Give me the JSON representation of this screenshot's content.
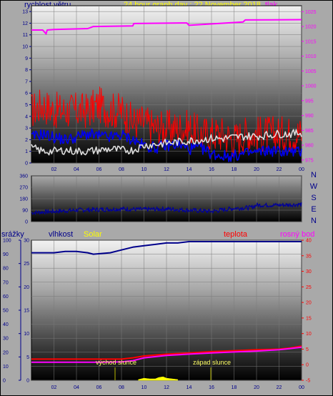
{
  "header": {
    "wind_label": "rychlost větru",
    "title": "24 hour graph day : 22 November 2018",
    "pressure_label": "tlak"
  },
  "direction_labels": [
    "N",
    "W",
    "S",
    "E",
    "N"
  ],
  "lower_header": {
    "rain_label": "srážky",
    "humidity_label": "vlhkost",
    "solar_label": "Solar",
    "temp_label": "teplota",
    "dew_label": "rosný bod"
  },
  "annotations": {
    "sunrise": "východ slunce",
    "sunset": "západ slunce"
  },
  "colors": {
    "wind_gust": "#ff0000",
    "wind_avg": "#0000ee",
    "pressure": "#ff00ff",
    "wind_dir": "#00009a",
    "humidity": "#00008b",
    "temperature": "#ff0000",
    "dew_point": "#ff00ff",
    "solar": "#ffff00",
    "white_series": "#dddddd",
    "left_axis_text": "#00008b",
    "title_text": "#ffff00"
  },
  "chart_data": [
    {
      "type": "line",
      "name": "wind-speed-pressure",
      "x_ticks": [
        "02",
        "04",
        "06",
        "08",
        "10",
        "12",
        "14",
        "16",
        "18",
        "20",
        "22",
        "00"
      ],
      "y_left_ticks": [
        "0",
        "1",
        "2",
        "3",
        "4",
        "5",
        "6",
        "7",
        "8",
        "9",
        "10",
        "11",
        "12",
        "13"
      ],
      "y_left_range": [
        0,
        13.5
      ],
      "y_right_ticks": [
        "975",
        "980",
        "985",
        "990",
        "995",
        "1000",
        "1005",
        "1010",
        "1015",
        "1020",
        "1025"
      ],
      "y_right_range": [
        974,
        1027
      ],
      "x_range": [
        0,
        24
      ],
      "series": [
        {
          "key": "gust",
          "x": [
            0,
            1,
            2,
            3,
            4,
            5,
            6,
            7,
            8,
            9,
            10,
            11,
            12,
            13,
            14,
            15,
            16,
            17,
            18,
            19,
            20,
            21,
            22,
            23,
            24
          ],
          "values": [
            4.5,
            5,
            4.5,
            4.5,
            4.5,
            4.5,
            5,
            4.5,
            4.5,
            3.5,
            3.5,
            3,
            3,
            3,
            3,
            2.5,
            2.5,
            2.5,
            2,
            2.5,
            2.5,
            2.5,
            2.5,
            2.5,
            2.5
          ]
        },
        {
          "key": "average",
          "x": [
            0,
            1,
            2,
            3,
            4,
            5,
            6,
            7,
            8,
            9,
            10,
            11,
            12,
            13,
            14,
            15,
            16,
            17,
            18,
            19,
            20,
            21,
            22,
            23,
            24
          ],
          "values": [
            2.2,
            2.5,
            2.2,
            2,
            2.2,
            2.5,
            2.3,
            2.2,
            2.4,
            2,
            1.5,
            1.3,
            1.5,
            1.6,
            1.2,
            1.3,
            0.8,
            0.6,
            0.6,
            0.8,
            0.9,
            1.1,
            1,
            1,
            0.9
          ]
        },
        {
          "key": "white",
          "x": [
            0,
            1,
            2,
            3,
            4,
            5,
            6,
            7,
            8,
            9,
            10,
            11,
            12,
            13,
            14,
            15,
            16,
            17,
            18,
            19,
            20,
            21,
            22,
            23,
            24
          ],
          "values": [
            1.3,
            1,
            1,
            1.1,
            1,
            1,
            1.1,
            1.2,
            1.1,
            1.1,
            1.5,
            1.6,
            1.7,
            1.8,
            1.9,
            2,
            2.1,
            2.1,
            2.2,
            2.3,
            2.3,
            2.4,
            2.5,
            2.5,
            2.6
          ]
        },
        {
          "key": "pressure",
          "axis": "right",
          "x": [
            0,
            1,
            1.3,
            1.4,
            2,
            5,
            5.5,
            9,
            9.1,
            13.8,
            14,
            18.8,
            19,
            24
          ],
          "values": [
            1018.8,
            1018.8,
            1017.5,
            1018.8,
            1019,
            1019.3,
            1020,
            1020.2,
            1021,
            1021.2,
            1020.4,
            1021.5,
            1022.2,
            1022.3
          ]
        }
      ]
    },
    {
      "type": "line",
      "name": "wind-direction",
      "y_left_ticks": [
        "0",
        "90",
        "180",
        "270",
        "360"
      ],
      "y_left_range": [
        0,
        360
      ],
      "x_range": [
        0,
        24
      ],
      "series": [
        {
          "key": "direction",
          "x": [
            0,
            2,
            4,
            6,
            8,
            10,
            12,
            14,
            16,
            18,
            19.5,
            20,
            22,
            24
          ],
          "values": [
            70,
            80,
            90,
            95,
            100,
            95,
            100,
            90,
            80,
            105,
            110,
            130,
            130,
            135
          ]
        }
      ]
    },
    {
      "type": "line",
      "name": "temperature-humidity",
      "x_ticks": [
        "02",
        "04",
        "06",
        "08",
        "10",
        "12",
        "14",
        "16",
        "18",
        "20",
        "22",
        "00"
      ],
      "y_left_ticks": [
        "0",
        "10",
        "20",
        "30",
        "40",
        "50",
        "60",
        "70",
        "80",
        "90",
        "100"
      ],
      "y_left_range": [
        0,
        100
      ],
      "y_mid_ticks": [
        "0",
        "5",
        "10",
        "15",
        "20",
        "25",
        "30"
      ],
      "y_mid_range": [
        0,
        30
      ],
      "y_right_ticks": [
        "-5",
        "0",
        "5",
        "10",
        "15",
        "20",
        "25",
        "30",
        "35",
        "40"
      ],
      "y_right_range": [
        -5,
        40
      ],
      "x_range": [
        0,
        24
      ],
      "series": [
        {
          "key": "humidity",
          "axis": "left",
          "x": [
            0,
            2,
            3,
            4,
            5,
            5.5,
            7,
            8,
            9,
            10,
            11,
            12,
            13,
            14,
            16,
            18,
            20,
            22,
            24
          ],
          "values": [
            91,
            91,
            92,
            92,
            91,
            90,
            91,
            93,
            95,
            96,
            97,
            98,
            98,
            99,
            99,
            99,
            99,
            99,
            99
          ]
        },
        {
          "key": "temperature",
          "axis": "right",
          "x": [
            0,
            2,
            4,
            6,
            8,
            9,
            10,
            12,
            14,
            16,
            18,
            20,
            22,
            23,
            24
          ],
          "values": [
            1.8,
            1.8,
            1.8,
            1.8,
            1.8,
            2.2,
            2.8,
            3.4,
            3.8,
            4.2,
            4.5,
            4.8,
            5.0,
            5.4,
            6.0
          ]
        },
        {
          "key": "dew-point",
          "axis": "right",
          "x": [
            0,
            2,
            4,
            6,
            8,
            9,
            10,
            12,
            14,
            16,
            18,
            20,
            22,
            23,
            24
          ],
          "values": [
            0.8,
            0.8,
            0.8,
            0.8,
            0.9,
            1.3,
            2.2,
            3.0,
            3.4,
            3.8,
            4.1,
            4.4,
            4.8,
            5.2,
            5.6
          ]
        },
        {
          "key": "solar",
          "axis": "left",
          "x": [
            9.5,
            10,
            10.5,
            11,
            11.3,
            11.7,
            12,
            12.5,
            13
          ],
          "values": [
            0.5,
            1.5,
            1,
            1,
            2,
            2.5,
            1.5,
            1,
            0.5
          ]
        }
      ]
    }
  ]
}
